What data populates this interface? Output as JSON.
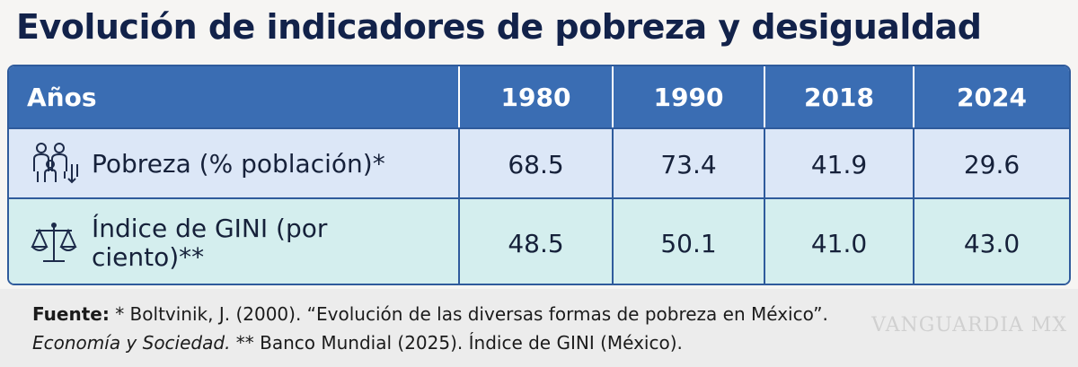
{
  "title": "Evolución de indicadores de pobreza y desigualdad",
  "table": {
    "header": [
      "Años",
      "1980",
      "1990",
      "2018",
      "2024"
    ],
    "rows": [
      [
        "Pobreza (% población)*",
        "68.5",
        "73.4",
        "41.9",
        "29.6"
      ],
      [
        "Índice de GINI (por ciento)**",
        "48.5",
        "50.1",
        "41.0",
        "43.0"
      ]
    ]
  },
  "footer": {
    "label": "Fuente:",
    "line1": " * Boltvinik, J. (2000). “Evolución de las diversas formas de pobreza en México”.",
    "italic": "Economía y Sociedad.",
    "line2": " ** Banco Mundial (2025). Índice de GINI (México)."
  },
  "watermark": "VANGUARDIA MX"
}
